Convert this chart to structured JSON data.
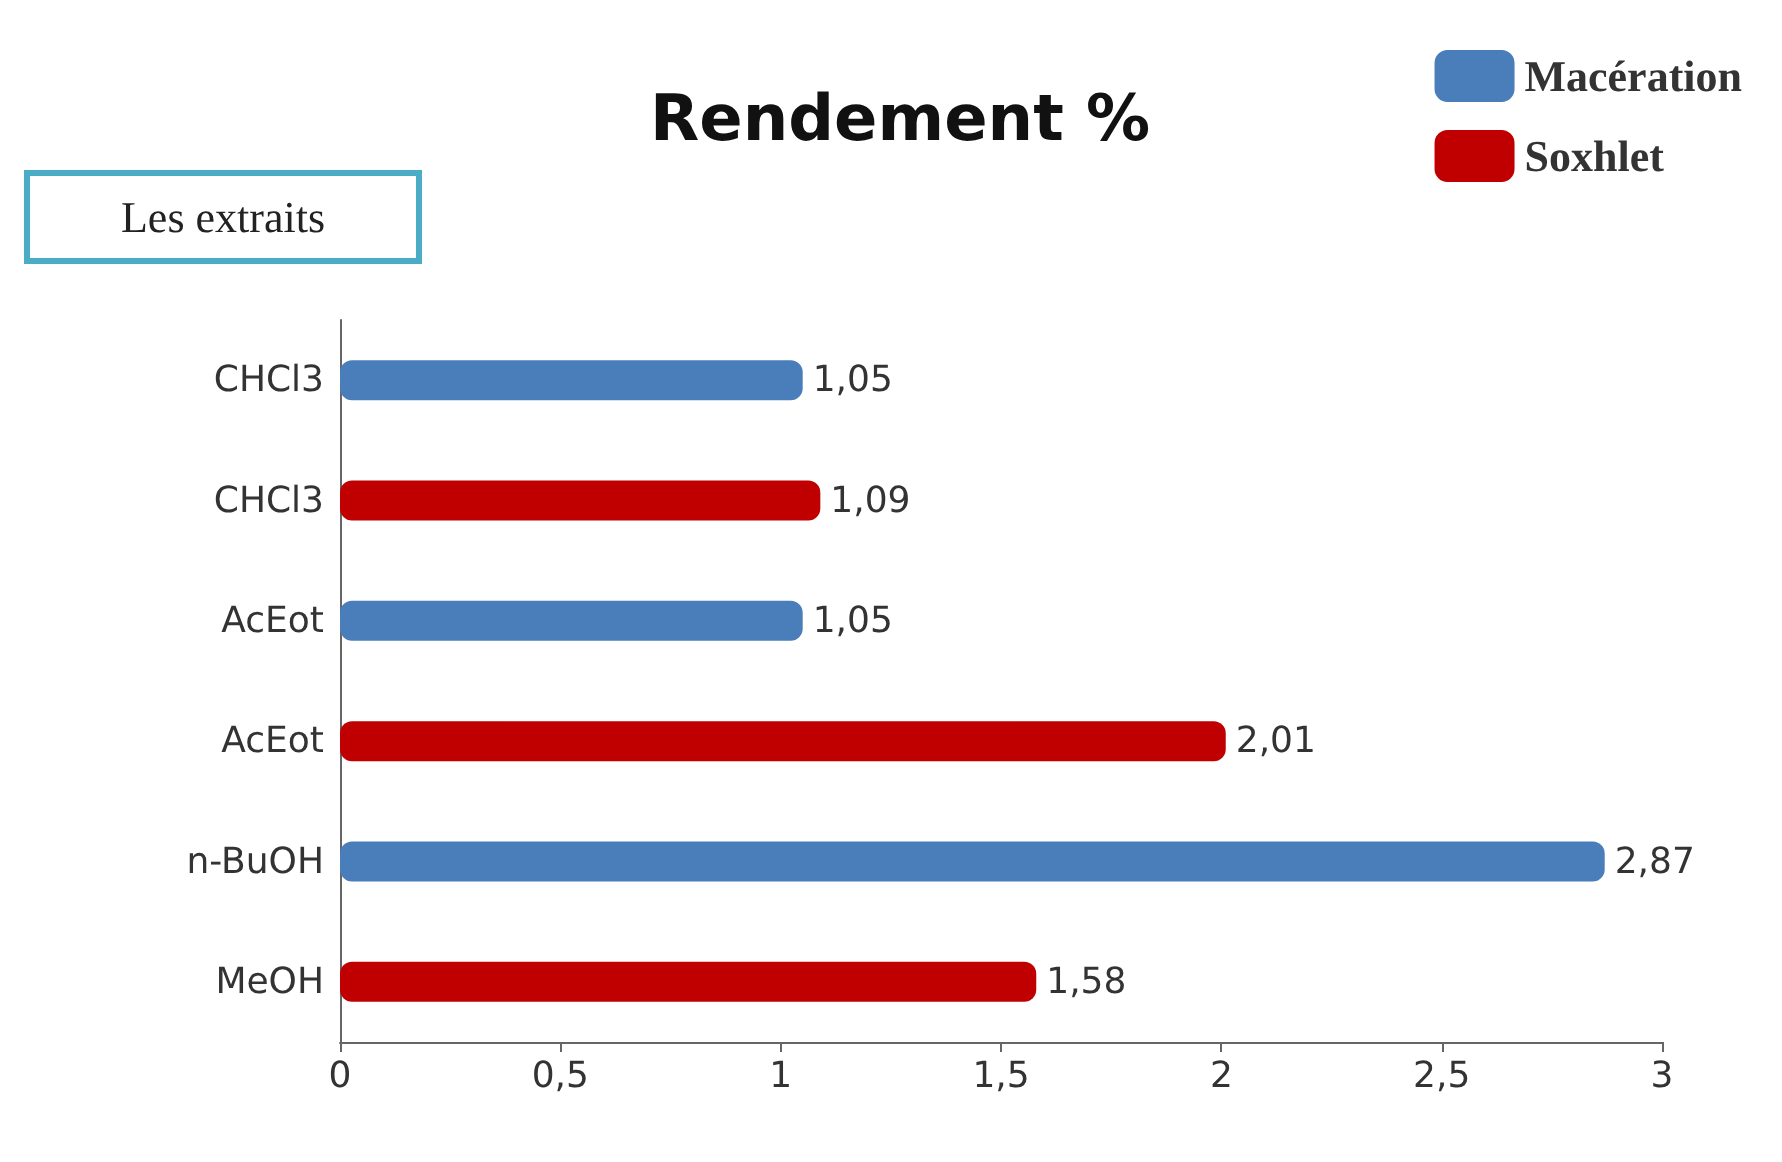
{
  "chart_data": {
    "type": "bar",
    "orientation": "horizontal",
    "title": "Rendement %",
    "ylabel": "Les extraits",
    "categories": [
      "CHCl3",
      "CHCl3",
      "AcEot",
      "AcEot",
      "n-BuOH",
      "MeOH"
    ],
    "series": [
      {
        "name": "Macération",
        "color": "#4a7ebb",
        "values": [
          1.05,
          null,
          1.05,
          null,
          2.87,
          null
        ],
        "value_labels": [
          "1,05",
          null,
          "1,05",
          null,
          "2,87",
          null
        ]
      },
      {
        "name": "Soxhlet",
        "color": "#c00000",
        "values": [
          null,
          1.09,
          null,
          2.01,
          null,
          1.58
        ],
        "value_labels": [
          null,
          "1,09",
          null,
          "2,01",
          null,
          "1,58"
        ]
      }
    ],
    "xlim": [
      0,
      3
    ],
    "xticks": [
      0,
      {
        "value": 0.5,
        "label": "0,5"
      },
      1,
      {
        "value": 1.5,
        "label": "1,5"
      },
      2,
      {
        "value": 2.5,
        "label": "2,5"
      },
      3
    ],
    "grid": false,
    "legend": "top right"
  }
}
